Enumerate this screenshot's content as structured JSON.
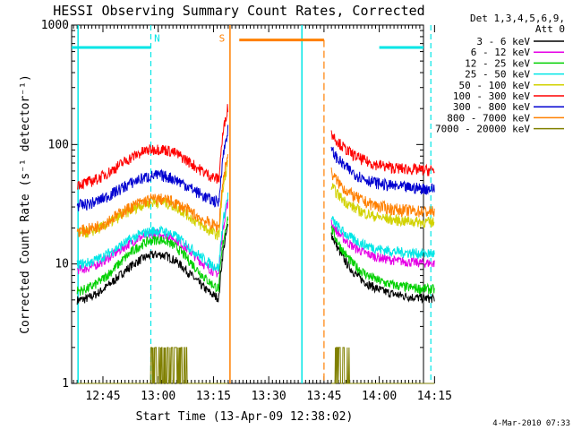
{
  "chart_data": {
    "type": "line",
    "title": "HESSI Observing Summary Count Rates, Corrected",
    "xlabel": "Start Time (13-Apr-09 12:38:02)",
    "ylabel": "Corrected Count Rate (s⁻¹ detector⁻¹)",
    "y_scale": "log",
    "ylim": [
      1,
      1000
    ],
    "xlim_minutes": [
      -8.5,
      87
    ],
    "x_ticks": [
      "12:45",
      "13:00",
      "13:15",
      "13:30",
      "13:45",
      "14:00",
      "14:15"
    ],
    "y_ticks": [
      "1",
      "10",
      "100",
      "1000"
    ],
    "legend_header": [
      "Det 1,3,4,5,6,9,",
      "Att 0"
    ],
    "legend_position": "top-right",
    "annotations": [
      {
        "label": "N",
        "color": "#00e6e6",
        "kind": "night"
      },
      {
        "label": "S",
        "color": "#ff8000",
        "kind": "SAA"
      }
    ],
    "night_bars": [
      {
        "start": "12:35",
        "end": "12:58",
        "level": 650
      },
      {
        "start": "14:00",
        "end": "14:20",
        "level": 650
      }
    ],
    "night_edges": [
      "12:58",
      "14:14"
    ],
    "saa_bar": {
      "start": "13:22",
      "end": "13:45",
      "level": 750
    },
    "data_gap": [
      "13:19",
      "13:47"
    ],
    "orbit_segments": [
      {
        "start": "12:38",
        "end": "13:19",
        "peak": "13:00"
      },
      {
        "start": "13:47",
        "end": "14:15"
      }
    ],
    "series": [
      {
        "name": "3 - 6 keV",
        "color": "#000000",
        "seg1_start": 5.0,
        "seg1_peak": 12.0,
        "seg1_end": 5.0,
        "seg2_start": 18.0,
        "seg2_end": 5.0
      },
      {
        "name": "6 - 12 keV",
        "color": "#e600e6",
        "seg1_start": 9.0,
        "seg1_peak": 18.0,
        "seg1_end": 8.0,
        "seg2_start": 22.0,
        "seg2_end": 10.0
      },
      {
        "name": "12 - 25 keV",
        "color": "#00d000",
        "seg1_start": 6.0,
        "seg1_peak": 16.0,
        "seg1_end": 6.0,
        "seg2_start": 20.0,
        "seg2_end": 6.0
      },
      {
        "name": "25 - 50 keV",
        "color": "#00e6e6",
        "seg1_start": 10.0,
        "seg1_peak": 19.0,
        "seg1_end": 9.0,
        "seg2_start": 24.0,
        "seg2_end": 12.0
      },
      {
        "name": "50 - 100 keV",
        "color": "#d2d200",
        "seg1_start": 18.0,
        "seg1_peak": 33.0,
        "seg1_end": 17.0,
        "seg2_start": 45.0,
        "seg2_end": 22.0
      },
      {
        "name": "100 - 300 keV",
        "color": "#ff0000",
        "seg1_start": 47.0,
        "seg1_peak": 92.0,
        "seg1_end": 50.0,
        "seg2_start": 125.0,
        "seg2_end": 60.0
      },
      {
        "name": "300 - 800 keV",
        "color": "#0000d0",
        "seg1_start": 31.0,
        "seg1_peak": 55.0,
        "seg1_end": 32.0,
        "seg2_start": 90.0,
        "seg2_end": 42.0
      },
      {
        "name": "800 - 7000 keV",
        "color": "#ff8000",
        "seg1_start": 19.0,
        "seg1_peak": 35.0,
        "seg1_end": 20.0,
        "seg2_start": 58.0,
        "seg2_end": 27.0
      },
      {
        "name": "7000 - 20000 keV",
        "color": "#808000",
        "seg1_start": 1.0,
        "seg1_peak": 1.0,
        "seg1_end": 1.0,
        "seg2_start": 1.0,
        "seg2_end": 1.0,
        "note": "mostly 1-2 counts, noisy"
      }
    ]
  },
  "footer": {
    "timestamp": "4-Mar-2010 07:33"
  }
}
